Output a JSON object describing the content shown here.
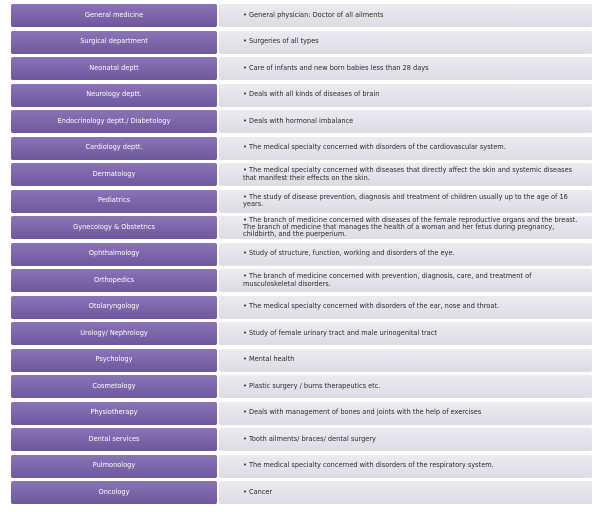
{
  "table": {
    "rows": [
      [
        "General medicine",
        "• General physician: Doctor of all ailments"
      ],
      [
        "Surgical department",
        "• Surgeries of all types"
      ],
      [
        "Neonatal deptt",
        "• Care of infants and new born babies less than 28 days"
      ],
      [
        "Neurology deptt.",
        "• Deals with all kinds of diseases of brain"
      ],
      [
        "Endocrinology deptt./ Diabetology",
        "• Deals with hormonal imbalance"
      ],
      [
        "Cardiology deptt.",
        "• The medical specialty concerned with disorders of the cardiovascular system."
      ],
      [
        "Dermatology",
        "• The medical specialty concerned with diseases that directly affect the skin and systemic diseases that manifest their effects on the skin."
      ],
      [
        "Pediatrics",
        "• The study of disease prevention, diagnosis and treatment of children usually up to the age of 16 years."
      ],
      [
        "Gynecology & Obstetrics",
        "• The branch of medicine concerned with diseases of the female reproductive organs and the breast. The branch of medicine that manages the health of a woman and her fetus during pregnancy, childbirth, and the puerperium."
      ],
      [
        "Ophthalmology",
        "• Study of structure, function, working and disorders of the eye."
      ],
      [
        "Orthopedics",
        "• The branch of medicine concerned with prevention, diagnosis, care, and treatment of musculoskeletal disorders."
      ],
      [
        "Otolaryngology",
        "• The medical specialty concerned with disorders of the ear, nose and throat."
      ],
      [
        "Urology/ Nephrology",
        "• Study of female urinary tract and male urinogenital tract"
      ],
      [
        "Psychology",
        "• Mental health"
      ],
      [
        "Cosmetology",
        "• Plastic surgery / burns therapeutics etc."
      ],
      [
        "Physiotherapy",
        "• Deals with management  of bones and joints with the help of exercises"
      ],
      [
        "Dental services",
        "• Tooth ailments/ braces/ dental surgery"
      ],
      [
        "Pulmonology",
        "• The medical specialty concerned with disorders of the respiratory system."
      ],
      [
        "Oncology",
        "• Cancer"
      ]
    ]
  }
}
